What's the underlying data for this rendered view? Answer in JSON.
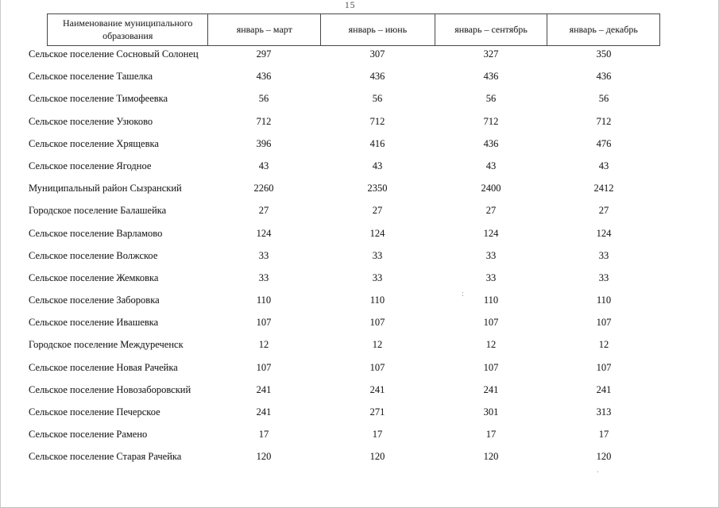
{
  "page": {
    "number": "15"
  },
  "table": {
    "columns": [
      {
        "label": "Наименование муниципального образования"
      },
      {
        "label": "январь – март"
      },
      {
        "label": "январь – июнь"
      },
      {
        "label": "январь – сентябрь"
      },
      {
        "label": "январь – декабрь"
      }
    ],
    "rows": [
      {
        "name": "Сельское поселение Сосновый Солонец",
        "values": [
          "297",
          "307",
          "327",
          "350"
        ]
      },
      {
        "name": "Сельское поселение Ташелка",
        "values": [
          "436",
          "436",
          "436",
          "436"
        ]
      },
      {
        "name": "Сельское поселение Тимофеевка",
        "values": [
          "56",
          "56",
          "56",
          "56"
        ]
      },
      {
        "name": "Сельское поселение Узюково",
        "values": [
          "712",
          "712",
          "712",
          "712"
        ]
      },
      {
        "name": "Сельское поселение Хрящевка",
        "values": [
          "396",
          "416",
          "436",
          "476"
        ]
      },
      {
        "name": "Сельское поселение Ягодное",
        "values": [
          "43",
          "43",
          "43",
          "43"
        ]
      },
      {
        "name": "Муниципальный район Сызранский",
        "values": [
          "2260",
          "2350",
          "2400",
          "2412"
        ]
      },
      {
        "name": "Городское поселение Балашейка",
        "values": [
          "27",
          "27",
          "27",
          "27"
        ]
      },
      {
        "name": "Сельское поселение Варламово",
        "values": [
          "124",
          "124",
          "124",
          "124"
        ]
      },
      {
        "name": "Сельское поселение Волжское",
        "values": [
          "33",
          "33",
          "33",
          "33"
        ]
      },
      {
        "name": "Сельское поселение Жемковка",
        "values": [
          "33",
          "33",
          "33",
          "33"
        ]
      },
      {
        "name": "Сельское поселение Заборовка",
        "values": [
          "110",
          "110",
          "110",
          "110"
        ]
      },
      {
        "name": "Сельское поселение Ивашевка",
        "values": [
          "107",
          "107",
          "107",
          "107"
        ]
      },
      {
        "name": "Городское поселение Междуреченск",
        "values": [
          "12",
          "12",
          "12",
          "12"
        ]
      },
      {
        "name": "Сельское поселение Новая Рачейка",
        "values": [
          "107",
          "107",
          "107",
          "107"
        ]
      },
      {
        "name": "Сельское поселение Новозаборовский",
        "values": [
          "241",
          "241",
          "241",
          "241"
        ]
      },
      {
        "name": "Сельское поселение Печерское",
        "values": [
          "241",
          "271",
          "301",
          "313"
        ]
      },
      {
        "name": "Сельское поселение Рамено",
        "values": [
          "17",
          "17",
          "17",
          "17"
        ]
      },
      {
        "name": "Сельское поселение Старая Рачейка",
        "values": [
          "120",
          "120",
          "120",
          "120"
        ]
      }
    ]
  },
  "artifacts": {
    "colon_mark": ":",
    "dot_mark": "."
  }
}
